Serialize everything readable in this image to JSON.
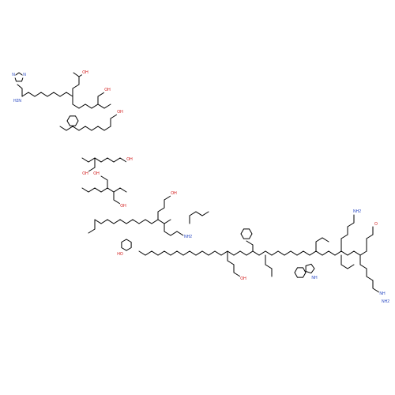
{
  "diagram": {
    "type": "skeletal-formula",
    "atom_labels": [
      {
        "id": "his-nh",
        "text": "N",
        "color": "#1f3fbf"
      },
      {
        "id": "his-n",
        "text": "N",
        "color": "#1f3fbf"
      },
      {
        "id": "his-nterm",
        "text": "H2N",
        "color": "#1f3fbf"
      },
      {
        "id": "glu1-o",
        "text": "OH",
        "color": "#d01010"
      },
      {
        "id": "ser1-oh",
        "text": "OH",
        "color": "#d01010"
      },
      {
        "id": "thr1-oh",
        "text": "OH",
        "color": "#d01010"
      },
      {
        "id": "ser2-oh",
        "text": "OH",
        "color": "#d01010"
      },
      {
        "id": "asp-oh",
        "text": "OH",
        "color": "#d01010"
      },
      {
        "id": "thr2-oh",
        "text": "OH",
        "color": "#d01010"
      },
      {
        "id": "ser3-oh",
        "text": "OH",
        "color": "#d01010"
      },
      {
        "id": "tyr-oh",
        "text": "HO",
        "color": "#d01010"
      },
      {
        "id": "glu2-oh",
        "text": "OH",
        "color": "#d01010"
      },
      {
        "id": "lys1-nh2",
        "text": "NH2",
        "color": "#1f3fbf"
      },
      {
        "id": "glu3-oh",
        "text": "OH",
        "color": "#d01010"
      },
      {
        "id": "trp-nh",
        "text": "NH",
        "color": "#1f3fbf"
      },
      {
        "id": "lys2-nh2",
        "text": "NH2",
        "color": "#1f3fbf"
      },
      {
        "id": "arg-nh",
        "text": "NH",
        "color": "#1f3fbf"
      },
      {
        "id": "arg-nh2",
        "text": "NH2",
        "color": "#1f3fbf"
      },
      {
        "id": "gly-o",
        "text": "O",
        "color": "#d01010"
      }
    ]
  }
}
